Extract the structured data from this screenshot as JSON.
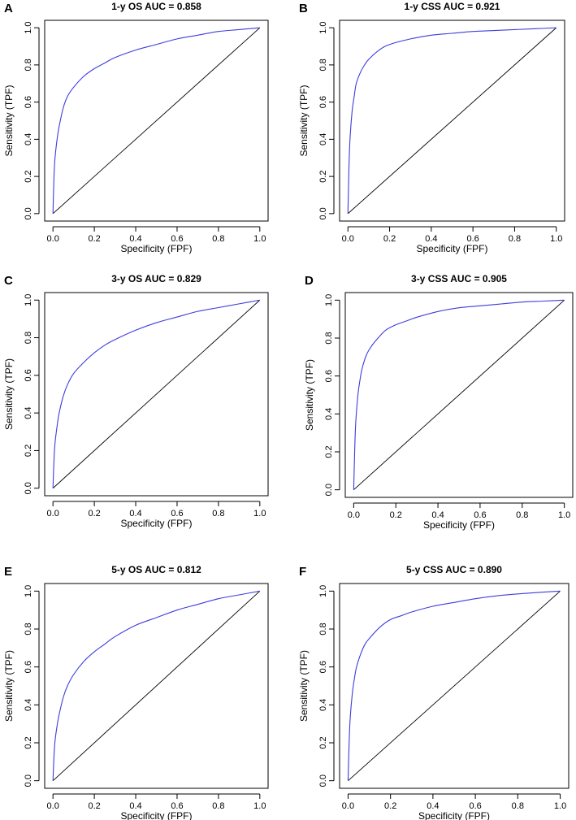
{
  "figure": {
    "background": "#ffffff",
    "curve_color": "#3d3ddd",
    "diagonal_color": "#000000"
  },
  "chart_data": [
    {
      "type": "line",
      "letter": "A",
      "title": "1-y OS AUC = 0.858",
      "xlabel": "Specificity (FPF)",
      "ylabel": "Sensitivity (TPF)",
      "xlim": [
        0,
        1
      ],
      "ylim": [
        0,
        1
      ],
      "x_ticks": [
        "0.0",
        "0.2",
        "0.4",
        "0.6",
        "0.8",
        "1.0"
      ],
      "y_ticks": [
        "0.0",
        "0.2",
        "0.4",
        "0.6",
        "0.8",
        "1.0"
      ],
      "grid": false,
      "reference_line": "diagonal",
      "series": [
        {
          "name": "ROC",
          "x": [
            0,
            0.005,
            0.01,
            0.02,
            0.03,
            0.05,
            0.07,
            0.1,
            0.15,
            0.2,
            0.25,
            0.3,
            0.4,
            0.5,
            0.6,
            0.7,
            0.8,
            0.9,
            1.0
          ],
          "y": [
            0,
            0.2,
            0.3,
            0.4,
            0.47,
            0.57,
            0.63,
            0.68,
            0.74,
            0.78,
            0.81,
            0.84,
            0.88,
            0.91,
            0.94,
            0.96,
            0.98,
            0.99,
            1.0
          ]
        }
      ]
    },
    {
      "type": "line",
      "letter": "B",
      "title": "1-y CSS AUC = 0.921",
      "xlabel": "Specificity (FPF)",
      "ylabel": "Sensitivity (TPF)",
      "xlim": [
        0,
        1
      ],
      "ylim": [
        0,
        1
      ],
      "x_ticks": [
        "0.0",
        "0.2",
        "0.4",
        "0.6",
        "0.8",
        "1.0"
      ],
      "y_ticks": [
        "0.0",
        "0.2",
        "0.4",
        "0.6",
        "0.8",
        "1.0"
      ],
      "grid": false,
      "reference_line": "diagonal",
      "series": [
        {
          "name": "ROC",
          "x": [
            0,
            0.005,
            0.01,
            0.02,
            0.03,
            0.04,
            0.06,
            0.08,
            0.1,
            0.15,
            0.2,
            0.3,
            0.4,
            0.5,
            0.6,
            0.7,
            0.8,
            0.9,
            1.0
          ],
          "y": [
            0,
            0.25,
            0.4,
            0.55,
            0.63,
            0.7,
            0.76,
            0.8,
            0.83,
            0.88,
            0.91,
            0.94,
            0.96,
            0.97,
            0.98,
            0.985,
            0.99,
            0.995,
            1.0
          ]
        }
      ]
    },
    {
      "type": "line",
      "letter": "C",
      "title": "3-y OS AUC = 0.829",
      "xlabel": "Specificity (FPF)",
      "ylabel": "Sensitivity (TPF)",
      "xlim": [
        0,
        1
      ],
      "ylim": [
        0,
        1
      ],
      "x_ticks": [
        "0.0",
        "0.2",
        "0.4",
        "0.6",
        "0.8",
        "1.0"
      ],
      "y_ticks": [
        "0.0",
        "0.2",
        "0.4",
        "0.6",
        "0.8",
        "1.0"
      ],
      "grid": false,
      "reference_line": "diagonal",
      "series": [
        {
          "name": "ROC",
          "x": [
            0,
            0.005,
            0.01,
            0.02,
            0.03,
            0.05,
            0.07,
            0.1,
            0.15,
            0.2,
            0.25,
            0.3,
            0.4,
            0.5,
            0.6,
            0.7,
            0.8,
            0.9,
            1.0
          ],
          "y": [
            0,
            0.15,
            0.24,
            0.33,
            0.4,
            0.49,
            0.55,
            0.61,
            0.67,
            0.72,
            0.76,
            0.79,
            0.84,
            0.88,
            0.91,
            0.94,
            0.96,
            0.98,
            1.0
          ]
        }
      ]
    },
    {
      "type": "line",
      "letter": "D",
      "title": "3-y CSS AUC = 0.905",
      "xlabel": "Specificity (FPF)",
      "ylabel": "Sensitivity (TPF)",
      "xlim": [
        0,
        1
      ],
      "ylim": [
        0,
        1
      ],
      "x_ticks": [
        "0.0",
        "0.2",
        "0.4",
        "0.6",
        "0.8",
        "1.0"
      ],
      "y_ticks": [
        "0.0",
        "0.2",
        "0.4",
        "0.6",
        "0.8",
        "1.0"
      ],
      "grid": false,
      "reference_line": "diagonal",
      "series": [
        {
          "name": "ROC",
          "x": [
            0,
            0.005,
            0.01,
            0.02,
            0.03,
            0.04,
            0.06,
            0.08,
            0.1,
            0.15,
            0.2,
            0.25,
            0.3,
            0.4,
            0.5,
            0.6,
            0.7,
            0.8,
            0.9,
            1.0
          ],
          "y": [
            0,
            0.22,
            0.36,
            0.5,
            0.58,
            0.64,
            0.71,
            0.75,
            0.78,
            0.84,
            0.87,
            0.89,
            0.91,
            0.94,
            0.96,
            0.97,
            0.98,
            0.99,
            0.995,
            1.0
          ]
        }
      ]
    },
    {
      "type": "line",
      "letter": "E",
      "title": "5-y OS AUC = 0.812",
      "xlabel": "Specificity (FPF)",
      "ylabel": "Sensitivity (TPF)",
      "xlim": [
        0,
        1
      ],
      "ylim": [
        0,
        1
      ],
      "x_ticks": [
        "0.0",
        "0.2",
        "0.4",
        "0.6",
        "0.8",
        "1.0"
      ],
      "y_ticks": [
        "0.0",
        "0.2",
        "0.4",
        "0.6",
        "0.8",
        "1.0"
      ],
      "grid": false,
      "reference_line": "diagonal",
      "series": [
        {
          "name": "ROC",
          "x": [
            0,
            0.005,
            0.01,
            0.02,
            0.03,
            0.05,
            0.07,
            0.1,
            0.15,
            0.2,
            0.25,
            0.3,
            0.4,
            0.5,
            0.6,
            0.7,
            0.8,
            0.9,
            1.0
          ],
          "y": [
            0,
            0.13,
            0.21,
            0.29,
            0.35,
            0.44,
            0.5,
            0.56,
            0.63,
            0.68,
            0.72,
            0.76,
            0.82,
            0.86,
            0.9,
            0.93,
            0.96,
            0.98,
            1.0
          ]
        }
      ]
    },
    {
      "type": "line",
      "letter": "F",
      "title": "5-y CSS AUC = 0.890",
      "xlabel": "Specificity (FPF)",
      "ylabel": "Sensitivity (TPF)",
      "xlim": [
        0,
        1
      ],
      "ylim": [
        0,
        1
      ],
      "x_ticks": [
        "0.0",
        "0.2",
        "0.4",
        "0.6",
        "0.8",
        "1.0"
      ],
      "y_ticks": [
        "0.0",
        "0.2",
        "0.4",
        "0.6",
        "0.8",
        "1.0"
      ],
      "grid": false,
      "reference_line": "diagonal",
      "series": [
        {
          "name": "ROC",
          "x": [
            0,
            0.005,
            0.01,
            0.02,
            0.03,
            0.04,
            0.06,
            0.08,
            0.1,
            0.15,
            0.2,
            0.25,
            0.3,
            0.4,
            0.5,
            0.6,
            0.7,
            0.8,
            0.9,
            1.0
          ],
          "y": [
            0,
            0.2,
            0.33,
            0.46,
            0.54,
            0.6,
            0.67,
            0.72,
            0.75,
            0.81,
            0.85,
            0.87,
            0.89,
            0.92,
            0.94,
            0.96,
            0.975,
            0.985,
            0.993,
            1.0
          ]
        }
      ]
    }
  ]
}
